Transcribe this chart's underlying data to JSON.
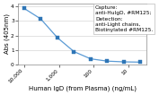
{
  "x_values": [
    10000,
    3333,
    1111,
    370,
    123,
    41,
    13.7,
    4.6
  ],
  "y_values": [
    3.88,
    3.15,
    1.85,
    0.88,
    0.38,
    0.22,
    0.17,
    0.15
  ],
  "x_label": "Human IgD (from Plasma) (ng/mL)",
  "y_label": "Abs (405nm)",
  "y_lim": [
    0,
    4.2
  ],
  "x_lim_high": 15000,
  "x_lim_low": 3,
  "line_color": "#5b9bd5",
  "marker": "s",
  "marker_color": "#2e75b6",
  "marker_size": 2.5,
  "legend_text": "Capture:\nanti-HuIgD, #RM125;\nDetection:\nanti-Light chains,\nBiotinylated #RM125.",
  "legend_fontsize": 4.2,
  "axis_fontsize": 5,
  "tick_fontsize": 4.2,
  "x_tick_labels": [
    "10,000",
    "1,000",
    "100",
    "10"
  ],
  "x_tick_positions": [
    10000,
    1000,
    100,
    10
  ],
  "y_tick_labels": [
    "0",
    "1",
    "2",
    "3",
    "4"
  ],
  "y_tick_positions": [
    0,
    1,
    2,
    3,
    4
  ],
  "background_color": "#ffffff",
  "grid_color": "#cccccc"
}
